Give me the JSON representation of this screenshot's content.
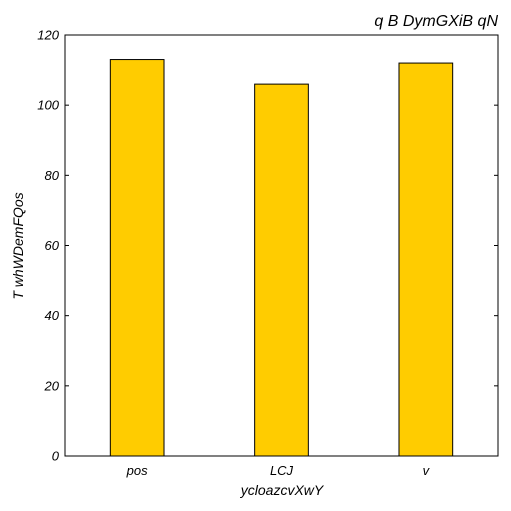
{
  "chart_data": {
    "type": "bar",
    "title": "q B DymGXiB qN",
    "xlabel": "ycloazcvXwY",
    "ylabel": "T whWDemFQos",
    "categories": [
      "pos",
      "LCJ",
      "v"
    ],
    "values": [
      113,
      106,
      112
    ],
    "ylim": [
      0,
      120
    ],
    "yticks": [
      0,
      20,
      40,
      60,
      80,
      100,
      120
    ],
    "grid": false,
    "legend": "none",
    "bar_color": "#ffcc00",
    "edge_color": "#000000"
  }
}
